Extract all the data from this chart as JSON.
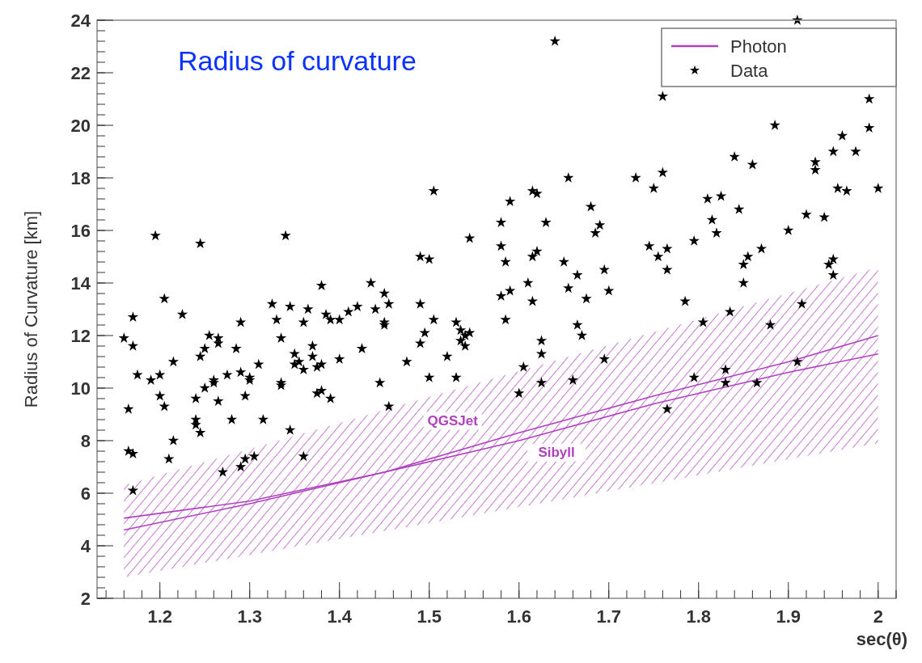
{
  "chart_data": {
    "type": "scatter",
    "title": "Radius of curvature",
    "xlabel": "sec(θ)",
    "ylabel": "Radius of Curvature [km]",
    "xlim": [
      1.13,
      2.02
    ],
    "xticks": [
      1.2,
      1.3,
      1.4,
      1.5,
      1.6,
      1.7,
      1.8,
      1.9,
      2
    ],
    "ylim": [
      2,
      24
    ],
    "yticks": [
      2,
      4,
      6,
      8,
      10,
      12,
      14,
      16,
      18,
      20,
      22,
      24
    ],
    "grid": false,
    "legend": "top right",
    "marker": "star",
    "annotations": [
      "QGSJet",
      "Sibyll"
    ],
    "series": [
      {
        "name": "Photon",
        "type": "line",
        "marker": "none",
        "line_style": "solid",
        "color": "#b040c0",
        "x": [
          1.16,
          1.3,
          1.45,
          1.6,
          1.75,
          1.9,
          2.0
        ],
        "values": [
          5.05,
          5.7,
          6.8,
          8.0,
          9.4,
          10.6,
          11.3
        ],
        "lower": [
          2.8,
          3.65,
          4.56,
          5.47,
          6.38,
          7.29,
          7.9
        ],
        "upper": [
          6.3,
          7.68,
          9.17,
          10.65,
          12.13,
          13.61,
          14.6
        ]
      },
      {
        "type": "line",
        "marker": "none",
        "line_style": "solid",
        "color": "#b040c0",
        "x": [
          1.16,
          1.3,
          1.45,
          1.6,
          1.75,
          1.9,
          2.0
        ],
        "values": [
          4.6,
          5.6,
          6.8,
          8.3,
          9.7,
          11.0,
          12.0
        ]
      },
      {
        "name": "Data",
        "color": "#000000",
        "x": [
          1.16,
          1.165,
          1.165,
          1.17,
          1.17,
          1.17,
          1.17,
          1.175,
          1.19,
          1.195,
          1.2,
          1.2,
          1.205,
          1.205,
          1.21,
          1.215,
          1.215,
          1.225,
          1.24,
          1.24,
          1.24,
          1.245,
          1.245,
          1.245,
          1.25,
          1.25,
          1.255,
          1.26,
          1.26,
          1.265,
          1.265,
          1.265,
          1.27,
          1.275,
          1.28,
          1.285,
          1.29,
          1.29,
          1.29,
          1.295,
          1.295,
          1.3,
          1.3,
          1.305,
          1.31,
          1.315,
          1.325,
          1.33,
          1.335,
          1.335,
          1.335,
          1.34,
          1.345,
          1.345,
          1.35,
          1.35,
          1.355,
          1.36,
          1.36,
          1.36,
          1.365,
          1.37,
          1.37,
          1.375,
          1.375,
          1.38,
          1.38,
          1.38,
          1.385,
          1.39,
          1.39,
          1.4,
          1.4,
          1.41,
          1.42,
          1.425,
          1.435,
          1.44,
          1.445,
          1.45,
          1.45,
          1.45,
          1.455,
          1.455,
          1.475,
          1.49,
          1.49,
          1.49,
          1.495,
          1.5,
          1.5,
          1.505,
          1.505,
          1.52,
          1.53,
          1.53,
          1.535,
          1.535,
          1.54,
          1.54,
          1.545,
          1.545,
          1.58,
          1.58,
          1.58,
          1.585,
          1.585,
          1.59,
          1.59,
          1.6,
          1.605,
          1.61,
          1.615,
          1.615,
          1.615,
          1.62,
          1.62,
          1.625,
          1.625,
          1.625,
          1.63,
          1.64,
          1.65,
          1.655,
          1.655,
          1.66,
          1.665,
          1.665,
          1.67,
          1.675,
          1.68,
          1.685,
          1.69,
          1.695,
          1.695,
          1.7,
          1.73,
          1.745,
          1.75,
          1.755,
          1.76,
          1.76,
          1.765,
          1.765,
          1.765,
          1.785,
          1.795,
          1.795,
          1.805,
          1.81,
          1.815,
          1.82,
          1.825,
          1.83,
          1.83,
          1.835,
          1.84,
          1.845,
          1.85,
          1.85,
          1.855,
          1.86,
          1.865,
          1.87,
          1.88,
          1.885,
          1.9,
          1.91,
          1.91,
          1.915,
          1.92,
          1.93,
          1.93,
          1.94,
          1.945,
          1.95,
          1.95,
          1.95,
          1.955,
          1.96,
          1.965,
          1.975,
          1.99,
          1.99,
          2.0
        ],
        "values": [
          11.9,
          9.2,
          7.6,
          7.5,
          6.1,
          12.7,
          11.6,
          10.5,
          10.3,
          15.8,
          9.7,
          10.5,
          13.4,
          9.3,
          7.3,
          8.0,
          11.0,
          12.8,
          9.6,
          8.8,
          8.6,
          8.3,
          15.5,
          11.2,
          10.0,
          11.5,
          12.0,
          10.3,
          10.2,
          11.9,
          11.7,
          9.5,
          6.8,
          10.5,
          8.8,
          11.5,
          7.0,
          12.5,
          10.6,
          9.7,
          7.3,
          10.4,
          10.3,
          7.4,
          10.9,
          8.8,
          13.2,
          12.6,
          11.9,
          10.2,
          10.1,
          15.8,
          8.4,
          13.1,
          11.3,
          10.9,
          11.0,
          10.7,
          7.4,
          12.5,
          13.0,
          11.6,
          11.2,
          10.8,
          9.8,
          13.9,
          10.9,
          9.9,
          12.8,
          9.6,
          12.6,
          11.1,
          12.6,
          12.9,
          13.1,
          11.5,
          14.0,
          13.0,
          10.2,
          13.6,
          12.5,
          12.4,
          13.2,
          9.3,
          11.0,
          11.7,
          13.2,
          15.0,
          12.1,
          10.4,
          14.9,
          12.6,
          17.5,
          11.2,
          12.5,
          10.4,
          12.2,
          11.8,
          12.0,
          11.6,
          15.7,
          12.1,
          16.3,
          13.5,
          15.4,
          12.6,
          14.8,
          13.7,
          17.1,
          9.8,
          10.8,
          14.0,
          17.5,
          15.0,
          13.3,
          17.4,
          15.2,
          11.8,
          11.3,
          10.2,
          16.3,
          23.2,
          14.8,
          18.0,
          13.8,
          10.3,
          14.3,
          12.4,
          12.0,
          13.4,
          16.9,
          15.9,
          16.2,
          14.5,
          11.1,
          13.7,
          18.0,
          15.4,
          17.6,
          15.0,
          18.2,
          21.1,
          9.2,
          15.3,
          14.5,
          13.3,
          15.6,
          10.4,
          12.5,
          17.2,
          16.4,
          15.9,
          17.3,
          10.2,
          10.7,
          12.9,
          18.8,
          16.8,
          14.7,
          14.0,
          15.0,
          18.5,
          10.2,
          15.3,
          12.4,
          20.0,
          16.0,
          24.0,
          11.0,
          13.2,
          16.6,
          18.6,
          18.3,
          16.5,
          14.7,
          19.0,
          14.9,
          14.3,
          17.6,
          19.6,
          17.5,
          19.0,
          21.0,
          19.9,
          17.6
        ]
      }
    ]
  }
}
